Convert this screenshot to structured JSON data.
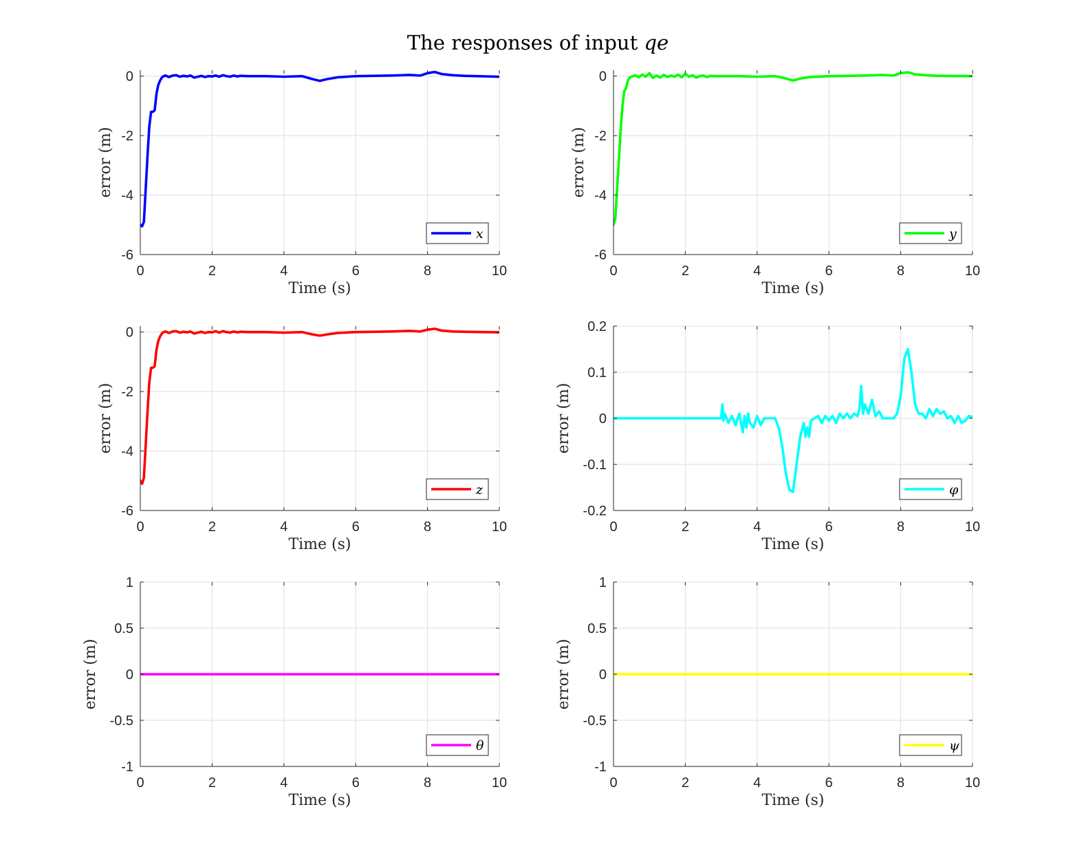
{
  "figure": {
    "title": "The responses of input ",
    "title_math": "qe"
  },
  "chart_data": [
    {
      "type": "line",
      "xlabel": "Time (s)",
      "ylabel": "error (m)",
      "xlim": [
        0,
        10
      ],
      "ylim": [
        -6,
        0.2
      ],
      "xticks": [
        0,
        2,
        4,
        6,
        8,
        10
      ],
      "yticks": [
        -6,
        -4,
        -2,
        0
      ],
      "grid": true,
      "legend_position": "bottom-right",
      "series": [
        {
          "name": "x",
          "color": "#0000ff",
          "x": [
            0,
            0.05,
            0.1,
            0.15,
            0.2,
            0.25,
            0.3,
            0.35,
            0.4,
            0.45,
            0.5,
            0.55,
            0.6,
            0.65,
            0.7,
            0.8,
            0.9,
            1.0,
            1.1,
            1.2,
            1.3,
            1.4,
            1.5,
            1.6,
            1.7,
            1.8,
            1.9,
            2.0,
            2.1,
            2.2,
            2.3,
            2.4,
            2.5,
            2.6,
            2.7,
            2.8,
            3.0,
            3.5,
            4.0,
            4.5,
            4.8,
            5.0,
            5.2,
            5.5,
            6.0,
            7.0,
            7.5,
            7.8,
            8.0,
            8.2,
            8.4,
            8.7,
            9.0,
            10.0
          ],
          "y": [
            -5.0,
            -5.05,
            -4.9,
            -3.8,
            -2.7,
            -1.7,
            -1.2,
            -1.2,
            -1.15,
            -0.6,
            -0.3,
            -0.15,
            -0.05,
            0.0,
            0.02,
            -0.03,
            0.02,
            0.03,
            -0.02,
            0.01,
            -0.01,
            0.02,
            -0.05,
            -0.02,
            0.01,
            -0.03,
            0.0,
            -0.01,
            0.02,
            -0.02,
            0.03,
            0.0,
            -0.02,
            0.02,
            -0.01,
            0.01,
            0.0,
            0.0,
            -0.02,
            0.0,
            -0.1,
            -0.16,
            -0.1,
            -0.04,
            0.0,
            0.02,
            0.04,
            0.02,
            0.1,
            0.14,
            0.07,
            0.03,
            0.01,
            -0.02
          ]
        }
      ]
    },
    {
      "type": "line",
      "xlabel": "Time (s)",
      "ylabel": "error (m)",
      "xlim": [
        0,
        10
      ],
      "ylim": [
        -6,
        0.2
      ],
      "xticks": [
        0,
        2,
        4,
        6,
        8,
        10
      ],
      "yticks": [
        -6,
        -4,
        -2,
        0
      ],
      "grid": true,
      "legend_position": "bottom-right",
      "series": [
        {
          "name": "y",
          "color": "#00ff00",
          "x": [
            0,
            0.05,
            0.1,
            0.15,
            0.2,
            0.25,
            0.3,
            0.35,
            0.4,
            0.45,
            0.5,
            0.55,
            0.6,
            0.7,
            0.8,
            0.9,
            1.0,
            1.1,
            1.2,
            1.3,
            1.4,
            1.5,
            1.6,
            1.7,
            1.8,
            1.9,
            2.0,
            2.1,
            2.2,
            2.3,
            2.4,
            2.5,
            2.6,
            2.7,
            2.8,
            3.0,
            3.5,
            4.0,
            4.5,
            4.8,
            5.0,
            5.2,
            5.5,
            6.0,
            7.0,
            7.5,
            7.8,
            8.0,
            8.2,
            8.4,
            8.7,
            9.0,
            10.0
          ],
          "y": [
            -5.0,
            -4.8,
            -3.8,
            -2.8,
            -1.8,
            -1.0,
            -0.5,
            -0.4,
            -0.15,
            -0.05,
            -0.02,
            0.0,
            0.03,
            -0.04,
            0.05,
            -0.02,
            0.1,
            -0.06,
            0.02,
            -0.05,
            0.04,
            -0.03,
            0.02,
            -0.02,
            0.05,
            -0.04,
            0.08,
            -0.02,
            0.03,
            -0.05,
            0.0,
            0.02,
            -0.03,
            0.01,
            0.0,
            0.0,
            0.0,
            -0.02,
            0.0,
            -0.08,
            -0.15,
            -0.08,
            -0.03,
            0.0,
            0.02,
            0.04,
            0.02,
            0.1,
            0.13,
            0.06,
            0.03,
            0.01,
            0.0
          ]
        }
      ]
    },
    {
      "type": "line",
      "xlabel": "Time (s)",
      "ylabel": "error (m)",
      "xlim": [
        0,
        10
      ],
      "ylim": [
        -6,
        0.2
      ],
      "xticks": [
        0,
        2,
        4,
        6,
        8,
        10
      ],
      "yticks": [
        -6,
        -4,
        -2,
        0
      ],
      "grid": true,
      "legend_position": "bottom-right",
      "series": [
        {
          "name": "z",
          "color": "#ff0000",
          "x": [
            0,
            0.05,
            0.1,
            0.15,
            0.2,
            0.25,
            0.3,
            0.35,
            0.4,
            0.45,
            0.5,
            0.55,
            0.6,
            0.65,
            0.7,
            0.8,
            0.9,
            1.0,
            1.1,
            1.2,
            1.3,
            1.4,
            1.5,
            1.6,
            1.7,
            1.8,
            1.9,
            2.0,
            2.1,
            2.2,
            2.3,
            2.4,
            2.5,
            2.6,
            2.7,
            2.8,
            3.0,
            3.5,
            4.0,
            4.5,
            4.8,
            5.0,
            5.2,
            5.5,
            6.0,
            7.0,
            7.5,
            7.8,
            8.0,
            8.2,
            8.4,
            8.7,
            9.0,
            10.0
          ],
          "y": [
            -5.0,
            -5.1,
            -4.9,
            -3.8,
            -2.7,
            -1.7,
            -1.2,
            -1.2,
            -1.15,
            -0.6,
            -0.3,
            -0.15,
            -0.05,
            0.0,
            0.02,
            -0.03,
            0.02,
            0.03,
            -0.02,
            0.01,
            -0.01,
            0.02,
            -0.05,
            -0.02,
            0.01,
            -0.03,
            0.0,
            -0.01,
            0.03,
            -0.02,
            0.03,
            0.0,
            -0.02,
            0.02,
            -0.01,
            0.01,
            0.0,
            0.0,
            -0.02,
            0.0,
            -0.08,
            -0.12,
            -0.08,
            -0.03,
            0.0,
            0.02,
            0.04,
            0.02,
            0.08,
            0.11,
            0.05,
            0.02,
            0.01,
            -0.01
          ]
        }
      ]
    },
    {
      "type": "line",
      "xlabel": "Time (s)",
      "ylabel": "error (m)",
      "xlim": [
        0,
        10
      ],
      "ylim": [
        -0.2,
        0.2
      ],
      "xticks": [
        0,
        2,
        4,
        6,
        8,
        10
      ],
      "yticks": [
        -0.2,
        -0.1,
        0,
        0.1,
        0.2
      ],
      "grid": true,
      "legend_position": "bottom-right",
      "series": [
        {
          "name": "φ",
          "color": "#00ffff",
          "x": [
            0,
            3.0,
            3.03,
            3.06,
            3.1,
            3.2,
            3.3,
            3.4,
            3.5,
            3.6,
            3.65,
            3.7,
            3.75,
            3.8,
            3.9,
            4.0,
            4.1,
            4.2,
            4.3,
            4.4,
            4.5,
            4.6,
            4.7,
            4.8,
            4.9,
            5.0,
            5.1,
            5.2,
            5.3,
            5.35,
            5.4,
            5.45,
            5.5,
            5.6,
            5.7,
            5.8,
            5.9,
            6.0,
            6.1,
            6.2,
            6.3,
            6.4,
            6.5,
            6.6,
            6.7,
            6.8,
            6.85,
            6.9,
            6.95,
            7.0,
            7.1,
            7.2,
            7.3,
            7.4,
            7.5,
            7.6,
            7.7,
            7.8,
            7.9,
            8.0,
            8.1,
            8.2,
            8.3,
            8.4,
            8.5,
            8.6,
            8.7,
            8.8,
            8.9,
            9.0,
            9.1,
            9.2,
            9.3,
            9.4,
            9.5,
            9.6,
            9.7,
            9.8,
            9.9,
            10.0
          ],
          "y": [
            0,
            0,
            0.03,
            -0.005,
            0.01,
            -0.01,
            0.005,
            -0.015,
            0.01,
            -0.03,
            0.005,
            -0.02,
            0.01,
            -0.01,
            -0.02,
            0.005,
            -0.015,
            0.0,
            0.0,
            0.0,
            0.0,
            -0.02,
            -0.06,
            -0.12,
            -0.155,
            -0.16,
            -0.1,
            -0.04,
            -0.01,
            -0.04,
            -0.02,
            -0.04,
            -0.005,
            0.0,
            0.005,
            -0.01,
            0.005,
            -0.005,
            0.005,
            -0.01,
            0.01,
            0.0,
            0.01,
            0.0,
            0.01,
            0.005,
            0.02,
            0.07,
            0.01,
            0.03,
            0.01,
            0.04,
            0.005,
            0.015,
            0.0,
            0.0,
            0.0,
            0.0,
            0.01,
            0.05,
            0.13,
            0.15,
            0.1,
            0.03,
            0.01,
            0.01,
            0.0,
            0.02,
            0.005,
            0.02,
            0.01,
            0.015,
            0.0,
            0.005,
            -0.01,
            0.005,
            -0.01,
            -0.005,
            0.005,
            0.003
          ]
        }
      ]
    },
    {
      "type": "line",
      "xlabel": "Time (s)",
      "ylabel": "error (m)",
      "xlim": [
        0,
        10
      ],
      "ylim": [
        -1,
        1
      ],
      "xticks": [
        0,
        2,
        4,
        6,
        8,
        10
      ],
      "yticks": [
        -1,
        -0.5,
        0,
        0.5,
        1
      ],
      "grid": true,
      "legend_position": "bottom-right",
      "series": [
        {
          "name": "θ",
          "color": "#ff00ff",
          "x": [
            0,
            10
          ],
          "y": [
            0,
            0
          ]
        }
      ]
    },
    {
      "type": "line",
      "xlabel": "Time (s)",
      "ylabel": "error (m)",
      "xlim": [
        0,
        10
      ],
      "ylim": [
        -1,
        1
      ],
      "xticks": [
        0,
        2,
        4,
        6,
        8,
        10
      ],
      "yticks": [
        -1,
        -0.5,
        0,
        0.5,
        1
      ],
      "grid": true,
      "legend_position": "bottom-right",
      "series": [
        {
          "name": "ψ",
          "color": "#ffff00",
          "x": [
            0,
            10
          ],
          "y": [
            0,
            0
          ]
        }
      ]
    }
  ]
}
